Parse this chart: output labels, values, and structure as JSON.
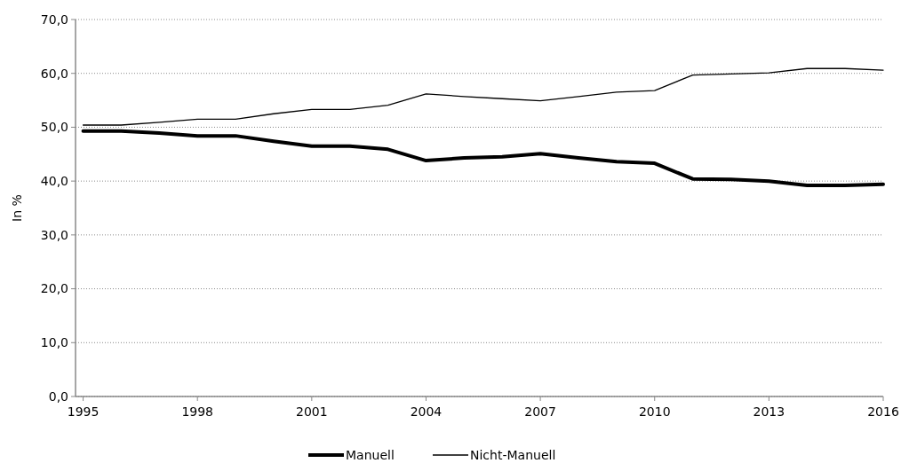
{
  "chart_data": {
    "type": "line",
    "ylabel": "In %",
    "x": [
      1995,
      1996,
      1997,
      1998,
      1999,
      2000,
      2001,
      2002,
      2003,
      2004,
      2005,
      2006,
      2007,
      2008,
      2009,
      2010,
      2011,
      2012,
      2013,
      2014,
      2015,
      2016
    ],
    "series": [
      {
        "name": "Manuell",
        "color": "#000000",
        "values": [
          49.3,
          49.3,
          48.9,
          48.4,
          48.4,
          47.4,
          46.5,
          46.5,
          45.9,
          43.8,
          44.3,
          44.5,
          45.1,
          44.3,
          43.6,
          43.3,
          40.4,
          40.3,
          40.0,
          39.2,
          39.2,
          39.4
        ]
      },
      {
        "name": "Nicht-Manuell",
        "color": "#000000",
        "values": [
          50.4,
          50.4,
          50.9,
          51.5,
          51.5,
          52.5,
          53.3,
          53.3,
          54.1,
          56.2,
          55.7,
          55.3,
          54.9,
          55.7,
          56.5,
          56.8,
          59.7,
          59.9,
          60.1,
          60.9,
          60.9,
          60.6
        ]
      }
    ],
    "xlim": [
      1994.8,
      2016
    ],
    "xticks": [
      1995,
      1998,
      2001,
      2004,
      2007,
      2010,
      2013,
      2016
    ],
    "ylim": [
      0,
      70
    ],
    "yticks": [
      {
        "value": 0,
        "label": "0,0"
      },
      {
        "value": 10,
        "label": "10,0"
      },
      {
        "value": 20,
        "label": "20,0"
      },
      {
        "value": 30,
        "label": "30,0"
      },
      {
        "value": 40,
        "label": "40,0"
      },
      {
        "value": 50,
        "label": "50,0"
      },
      {
        "value": 60,
        "label": "60,0"
      },
      {
        "value": 70,
        "label": "70,0"
      }
    ],
    "grid": "y",
    "legend": "bottom",
    "marker": "none",
    "line_style": "solid"
  }
}
